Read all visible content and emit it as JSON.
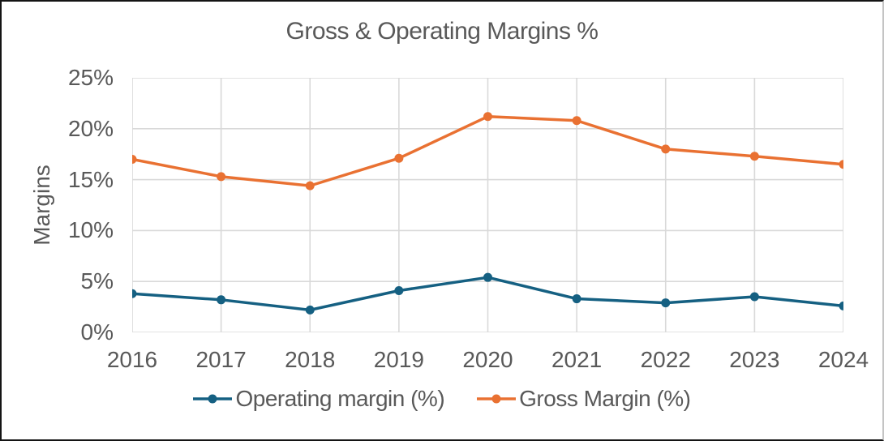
{
  "chart_data": {
    "type": "line",
    "title": "Gross & Operating Margins %",
    "ylabel": "Margins",
    "xlabel": "",
    "categories": [
      "2016",
      "2017",
      "2018",
      "2019",
      "2020",
      "2021",
      "2022",
      "2023",
      "2024"
    ],
    "series": [
      {
        "name": "Operating margin (%)",
        "color": "#156082",
        "values": [
          3.8,
          3.2,
          2.2,
          4.1,
          5.4,
          3.3,
          2.9,
          3.5,
          2.6
        ]
      },
      {
        "name": "Gross Margin (%)",
        "color": "#E97132",
        "values": [
          17.0,
          15.3,
          14.4,
          17.1,
          21.2,
          20.8,
          18.0,
          17.3,
          16.5
        ]
      }
    ],
    "ylim": [
      0,
      25
    ],
    "ytick_step": 5,
    "ytick_labels": [
      "0%",
      "5%",
      "10%",
      "15%",
      "20%",
      "25%"
    ],
    "grid": true,
    "legend_position": "bottom",
    "marker": "circle"
  },
  "theme": {
    "text_color": "#595959",
    "grid_color": "#D9D9D9",
    "background": "#FFFFFF"
  }
}
